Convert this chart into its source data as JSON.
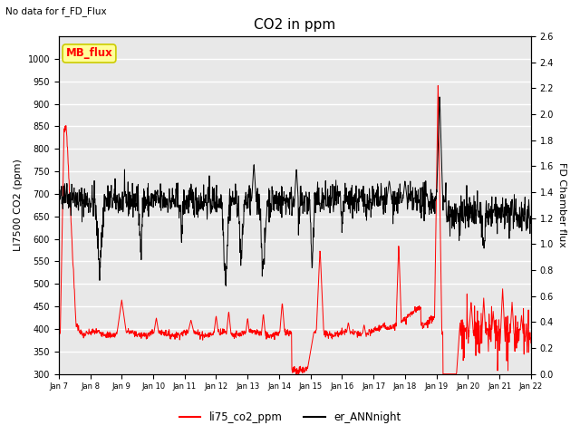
{
  "title": "CO2 in ppm",
  "subtitle": "No data for f_FD_Flux",
  "ylabel_left": "LI7500 CO2 (ppm)",
  "ylabel_right": "FD Chamber flux",
  "ylim_left": [
    300,
    1050
  ],
  "ylim_right": [
    0.0,
    2.6
  ],
  "yticks_left": [
    300,
    350,
    400,
    450,
    500,
    550,
    600,
    650,
    700,
    750,
    800,
    850,
    900,
    950,
    1000
  ],
  "yticks_right": [
    0.0,
    0.2,
    0.4,
    0.6,
    0.8,
    1.0,
    1.2,
    1.4,
    1.6,
    1.8,
    2.0,
    2.2,
    2.4,
    2.6
  ],
  "xtick_labels": [
    "Jan 7",
    "Jan 8",
    "Jan 9",
    "Jan 10",
    "Jan 11",
    "Jan 12",
    "Jan 13",
    "Jan 14",
    "Jan 15",
    "Jan 16",
    "Jan 17",
    "Jan 18",
    "Jan 19",
    "Jan 20",
    "Jan 21",
    "Jan 22"
  ],
  "legend_entries": [
    "li75_co2_ppm",
    "er_ANNnight"
  ],
  "legend_colors": [
    "red",
    "black"
  ],
  "box_label": "MB_flux",
  "box_color": "#ffff99",
  "box_border": "#cccc00",
  "background_color": "#e8e8e8",
  "line_co2_color": "red",
  "line_ann_color": "black",
  "grid_color": "white",
  "title_fontsize": 11,
  "label_fontsize": 8,
  "tick_fontsize": 7
}
